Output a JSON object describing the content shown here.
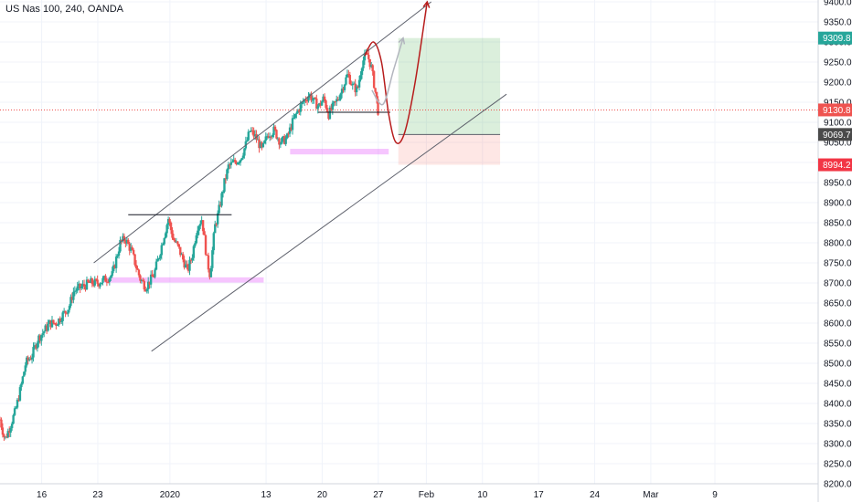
{
  "legend": {
    "text": "US Nas 100, 240, OANDA"
  },
  "chart_data": {
    "type": "candlestick",
    "symbol": "US Nas 100",
    "interval": "240",
    "source": "OANDA",
    "grid": true,
    "y_axis": {
      "position": "right",
      "range": [
        8200,
        9400
      ],
      "ticks": [
        9400,
        9350,
        9300,
        9250,
        9200,
        9150,
        9100,
        9050,
        9000,
        8950,
        8900,
        8850,
        8800,
        8750,
        8700,
        8650,
        8600,
        8550,
        8500,
        8450,
        8400,
        8350,
        8300,
        8250,
        8200
      ]
    },
    "x_axis": {
      "range_days": [
        -5.2,
        53.2
      ],
      "ticks": [
        {
          "day": 0,
          "label": "16"
        },
        {
          "day": 7,
          "label": "23"
        },
        {
          "day": 16,
          "label": "2020"
        },
        {
          "day": 28,
          "label": "13"
        },
        {
          "day": 35,
          "label": "20"
        },
        {
          "day": 42,
          "label": "27"
        },
        {
          "day": 48,
          "label": "Feb"
        },
        {
          "day": 55,
          "label": "10"
        },
        {
          "day": 62,
          "label": "17"
        },
        {
          "day": 69,
          "label": "24"
        },
        {
          "day": 76,
          "label": "Mar"
        },
        {
          "day": 84,
          "label": "9"
        }
      ]
    },
    "price_labels": [
      {
        "value": 9309.8,
        "text": "9309.8",
        "color": "#26a69a"
      },
      {
        "value": 9130.8,
        "text": "9130.8",
        "color": "#ef5350"
      },
      {
        "value": 9069.7,
        "text": "9069.7",
        "color": "#4a4a4a"
      },
      {
        "value": 8994.2,
        "text": "8994.2",
        "color": "#f23645"
      }
    ],
    "path_points": [
      [
        -5.2,
        8360
      ],
      [
        -4.6,
        8310
      ],
      [
        -4.0,
        8340
      ],
      [
        -3.3,
        8380
      ],
      [
        -2.6,
        8440
      ],
      [
        -2.0,
        8500
      ],
      [
        -1.2,
        8520
      ],
      [
        -0.5,
        8560
      ],
      [
        0.3,
        8580
      ],
      [
        1.0,
        8600
      ],
      [
        1.8,
        8600
      ],
      [
        2.6,
        8620
      ],
      [
        3.4,
        8640
      ],
      [
        4.0,
        8680
      ],
      [
        5.0,
        8690
      ],
      [
        6.0,
        8700
      ],
      [
        7.0,
        8700
      ],
      [
        8.0,
        8710
      ],
      [
        8.8,
        8720
      ],
      [
        9.3,
        8760
      ],
      [
        9.8,
        8800
      ],
      [
        10.4,
        8810
      ],
      [
        11.2,
        8780
      ],
      [
        11.8,
        8740
      ],
      [
        12.3,
        8710
      ],
      [
        13.0,
        8690
      ],
      [
        14.0,
        8720
      ],
      [
        14.8,
        8780
      ],
      [
        15.3,
        8820
      ],
      [
        15.8,
        8860
      ],
      [
        16.4,
        8810
      ],
      [
        17.0,
        8790
      ],
      [
        17.6,
        8760
      ],
      [
        18.2,
        8730
      ],
      [
        18.8,
        8770
      ],
      [
        19.4,
        8840
      ],
      [
        20.0,
        8860
      ],
      [
        20.6,
        8760
      ],
      [
        21.0,
        8720
      ],
      [
        21.6,
        8840
      ],
      [
        22.0,
        8870
      ],
      [
        22.4,
        8910
      ],
      [
        22.8,
        8950
      ],
      [
        23.3,
        8990
      ],
      [
        24.0,
        9000
      ],
      [
        24.8,
        9010
      ],
      [
        25.4,
        9040
      ],
      [
        26.0,
        9080
      ],
      [
        26.8,
        9060
      ],
      [
        27.5,
        9030
      ],
      [
        28.2,
        9070
      ],
      [
        29.0,
        9080
      ],
      [
        29.8,
        9050
      ],
      [
        30.6,
        9060
      ],
      [
        31.3,
        9100
      ],
      [
        32.0,
        9130
      ],
      [
        32.6,
        9150
      ],
      [
        33.4,
        9170
      ],
      [
        34.0,
        9150
      ],
      [
        34.6,
        9140
      ],
      [
        35.2,
        9160
      ],
      [
        35.8,
        9120
      ],
      [
        36.4,
        9140
      ],
      [
        37.0,
        9160
      ],
      [
        37.6,
        9190
      ],
      [
        38.2,
        9220
      ],
      [
        38.8,
        9190
      ],
      [
        39.4,
        9180
      ],
      [
        40.0,
        9250
      ],
      [
        40.6,
        9270
      ],
      [
        41.1,
        9240
      ],
      [
        41.6,
        9180
      ],
      [
        42.0,
        9125
      ]
    ],
    "trendlines": [
      {
        "name": "channel-upper",
        "from": [
          6.5,
          8750
        ],
        "to": [
          48.6,
          9400
        ],
        "color": "#5d606b"
      },
      {
        "name": "channel-lower",
        "from": [
          13.7,
          8530
        ],
        "to": [
          58.0,
          9170
        ],
        "color": "#5d606b"
      },
      {
        "name": "resistance-line",
        "from": [
          10.8,
          8870
        ],
        "to": [
          23.7,
          8870
        ],
        "color": "#131722"
      },
      {
        "name": "support-line",
        "from": [
          34.5,
          9125
        ],
        "to": [
          43.5,
          9125
        ],
        "color": "#131722"
      }
    ],
    "zones": [
      {
        "name": "support-zone-1",
        "x": [
          7.6,
          27.7
        ],
        "y": [
          8701,
          8714
        ],
        "color": "rgba(224,64,251,0.30)"
      },
      {
        "name": "support-zone-2",
        "x": [
          31.0,
          43.3
        ],
        "y": [
          9020,
          9034
        ],
        "color": "rgba(224,64,251,0.30)"
      }
    ],
    "position": {
      "type": "long",
      "entry": 9069.7,
      "target": 9309.8,
      "stop": 8994.2,
      "x": [
        44.5,
        57.2
      ]
    },
    "projections": [
      {
        "name": "projection-curve",
        "color": "#b71c1c",
        "points": [
          [
            40.3,
            9265
          ],
          [
            41.4,
            9300
          ],
          [
            42.4,
            9250
          ],
          [
            43.3,
            9120
          ],
          [
            44.2,
            9050
          ],
          [
            45.3,
            9075
          ],
          [
            46.6,
            9200
          ],
          [
            48.1,
            9400
          ]
        ]
      },
      {
        "name": "projection-alt",
        "color": "#b2b5be",
        "points": [
          [
            41.2,
            9180
          ],
          [
            42.6,
            9145
          ],
          [
            43.9,
            9230
          ],
          [
            45.1,
            9310
          ]
        ]
      }
    ]
  }
}
